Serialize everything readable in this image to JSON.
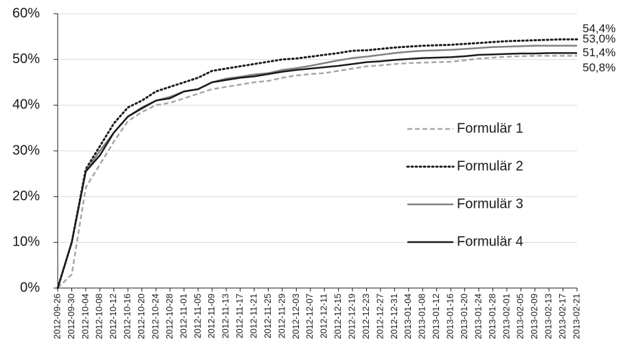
{
  "chart_data": {
    "type": "line",
    "categories": [
      "2012-09-26",
      "2012-09-30",
      "2012-10-04",
      "2012-10-08",
      "2012-10-12",
      "2012-10-16",
      "2012-10-20",
      "2012-10-24",
      "2012-10-28",
      "2012-11-01",
      "2012-11-05",
      "2012-11-09",
      "2012-11-13",
      "2012-11-17",
      "2012-11-21",
      "2012-11-25",
      "2012-11-29",
      "2012-12-03",
      "2012-12-07",
      "2012-12-11",
      "2012-12-15",
      "2012-12-19",
      "2012-12-23",
      "2012-12-27",
      "2012-12-31",
      "2013-01-04",
      "2013-01-08",
      "2013-01-12",
      "2013-01-16",
      "2013-01-20",
      "2013-01-24",
      "2013-01-28",
      "2013-02-01",
      "2013-02-05",
      "2013-02-09",
      "2013-02-13",
      "2013-02-17",
      "2013-02-21"
    ],
    "series": [
      {
        "name": "Formulär 1",
        "color": "#a6a6a6",
        "dash": "dashed",
        "end_label": "50,8%",
        "values": [
          0,
          3,
          22,
          27,
          32,
          36.5,
          38.5,
          40,
          40.5,
          41.5,
          42.5,
          43.5,
          44,
          44.5,
          45,
          45.3,
          46,
          46.5,
          46.8,
          47,
          47.5,
          48,
          48.5,
          48.7,
          49,
          49.2,
          49.3,
          49.4,
          49.5,
          49.8,
          50.2,
          50.4,
          50.6,
          50.7,
          50.8,
          50.8,
          50.8,
          50.8
        ]
      },
      {
        "name": "Formulär 2",
        "color": "#1a1a1a",
        "dash": "dotted",
        "end_label": "54,4%",
        "values": [
          0,
          10,
          26,
          31,
          36,
          39.5,
          41,
          43,
          44,
          45,
          46,
          47.5,
          48,
          48.5,
          49,
          49.5,
          50,
          50.2,
          50.6,
          51,
          51.4,
          51.9,
          52,
          52.3,
          52.6,
          52.8,
          53,
          53.1,
          53.2,
          53.4,
          53.6,
          53.8,
          54,
          54.1,
          54.2,
          54.3,
          54.4,
          54.4
        ]
      },
      {
        "name": "Formulär 3",
        "color": "#808080",
        "dash": "solid",
        "end_label": "53,0%",
        "values": [
          0,
          10,
          25.5,
          30,
          34,
          37.5,
          39.5,
          41,
          41.8,
          43,
          43.5,
          45,
          45.8,
          46.2,
          46.7,
          47,
          47.7,
          48.1,
          48.6,
          49.2,
          49.8,
          50.3,
          50.6,
          51,
          51.4,
          51.7,
          51.9,
          52,
          52.1,
          52.3,
          52.5,
          52.7,
          52.8,
          52.9,
          53,
          53,
          53,
          53
        ]
      },
      {
        "name": "Formulär 4",
        "color": "#1a1a1a",
        "dash": "solid",
        "end_label": "51,4%",
        "values": [
          0,
          10,
          25.5,
          29,
          34,
          37.5,
          39.3,
          41,
          41.5,
          43,
          43.5,
          45,
          45.5,
          46,
          46.3,
          46.8,
          47.3,
          47.7,
          48,
          48.3,
          48.6,
          49,
          49.4,
          49.6,
          49.9,
          50.1,
          50.3,
          50.4,
          50.5,
          50.7,
          51,
          51.1,
          51.2,
          51.3,
          51.3,
          51.4,
          51.4,
          51.4
        ]
      }
    ],
    "ylim": [
      0,
      60
    ],
    "yticks": [
      {
        "value": 0,
        "label": "0%"
      },
      {
        "value": 10,
        "label": "10%"
      },
      {
        "value": 20,
        "label": "20%"
      },
      {
        "value": 30,
        "label": "30%"
      },
      {
        "value": 40,
        "label": "40%"
      },
      {
        "value": 50,
        "label": "50%"
      },
      {
        "value": 60,
        "label": "60%"
      }
    ],
    "grid": true
  }
}
